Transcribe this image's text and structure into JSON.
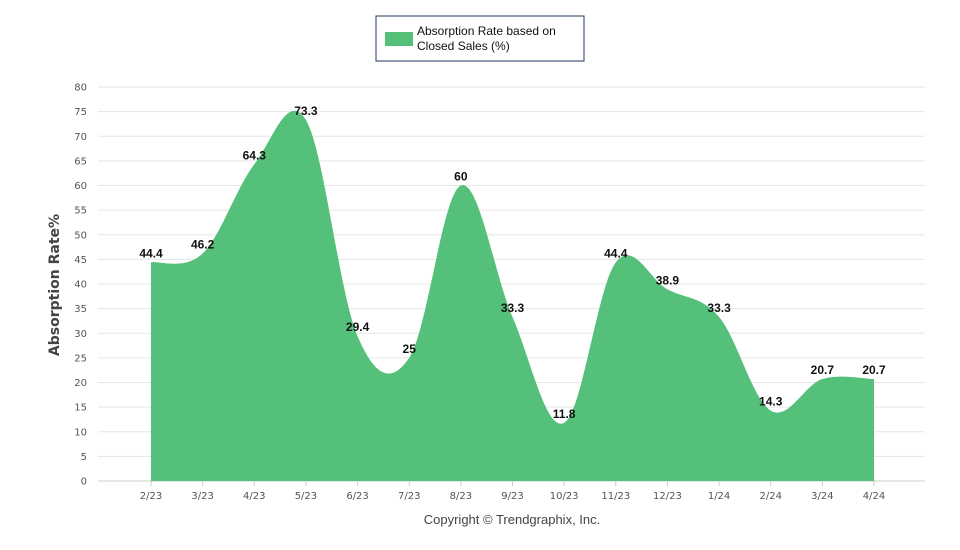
{
  "chart_data": {
    "type": "area",
    "ylabel": "Absorption Rate%",
    "xlabel": "",
    "ylim": [
      0,
      80
    ],
    "ytick_step": 5,
    "grid": true,
    "legend": {
      "position": "top-center",
      "label_line1": "Absorption Rate based on",
      "label_line2": "Closed Sales (%)"
    },
    "categories": [
      "2/23",
      "3/23",
      "4/23",
      "5/23",
      "6/23",
      "7/23",
      "8/23",
      "9/23",
      "10/23",
      "11/23",
      "12/23",
      "1/24",
      "2/24",
      "3/24",
      "4/24"
    ],
    "series": [
      {
        "name": "Absorption Rate based on Closed Sales (%)",
        "color": "#55c07a",
        "values": [
          44.4,
          46.2,
          64.3,
          73.3,
          29.4,
          25,
          60,
          33.3,
          11.8,
          44.4,
          38.9,
          33.3,
          14.3,
          20.7,
          20.7
        ]
      }
    ],
    "colors": {
      "fill": "#55c07a",
      "grid": "#e6e6e6",
      "legend_border": "#1f3a5f"
    }
  },
  "footer": {
    "copyright": "Copyright © Trendgraphix, Inc."
  }
}
